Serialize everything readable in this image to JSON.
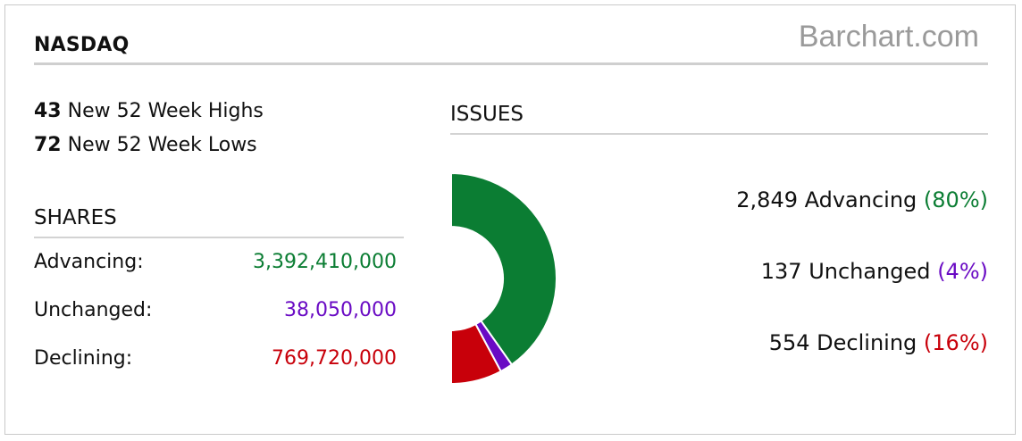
{
  "header": {
    "title": "NASDAQ",
    "brand": "Barchart.com"
  },
  "highs_lows": {
    "highs_count": "43",
    "highs_label": "New 52 Week Highs",
    "lows_count": "72",
    "lows_label": "New 52 Week Lows"
  },
  "shares": {
    "heading": "SHARES",
    "rows": [
      {
        "label": "Advancing:",
        "value": "3,392,410,000"
      },
      {
        "label": "Unchanged:",
        "value": "38,050,000"
      },
      {
        "label": "Declining:",
        "value": "769,720,000"
      }
    ]
  },
  "issues": {
    "heading": "ISSUES",
    "rows": [
      {
        "text": "2,849 Advancing",
        "pct": "(80%)"
      },
      {
        "text": "137 Unchanged",
        "pct": "(4%)"
      },
      {
        "text": "554 Declining",
        "pct": "(16%)"
      }
    ]
  },
  "colors": {
    "advancing": "#0b7d33",
    "unchanged": "#6a0bc4",
    "declining": "#c8000a"
  },
  "chart_data": {
    "type": "pie",
    "categories": [
      "Advancing",
      "Unchanged",
      "Declining"
    ],
    "values": [
      2849,
      137,
      554
    ],
    "percent_labels": [
      "80%",
      "4%",
      "16%"
    ],
    "variant": "half-donut"
  }
}
